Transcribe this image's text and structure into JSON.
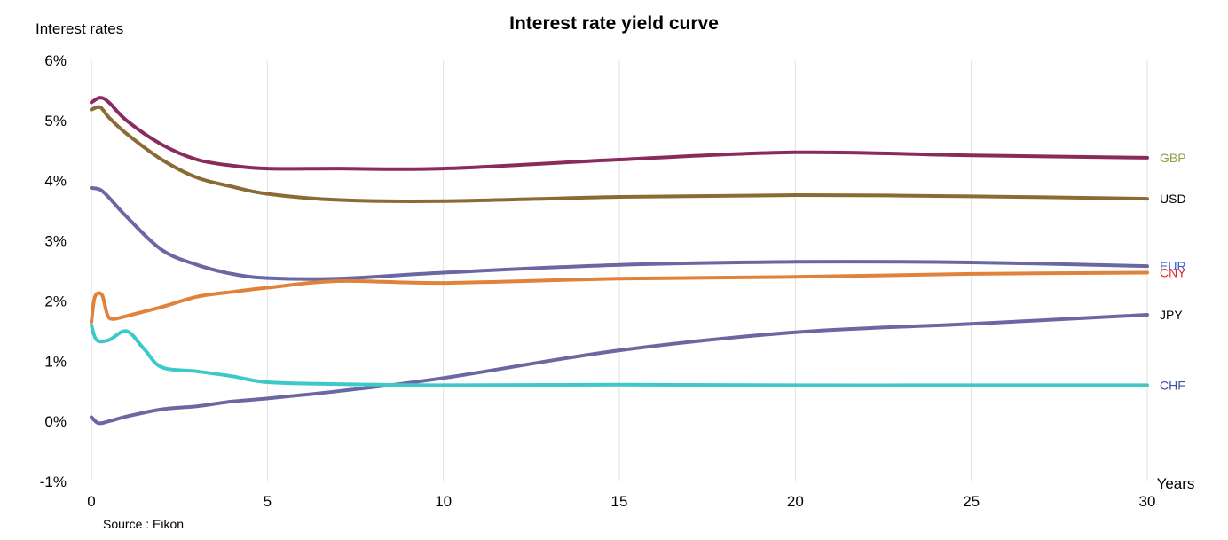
{
  "chart_data": {
    "type": "line",
    "title": "Interest rate yield curve",
    "ylabel": "Interest rates",
    "xlabel": "Years",
    "source": "Source : Eikon",
    "x_ticks": [
      "0",
      "5",
      "10",
      "15",
      "20",
      "25",
      "30"
    ],
    "y_ticks": [
      "-1%",
      "0%",
      "1%",
      "2%",
      "3%",
      "4%",
      "5%",
      "6%"
    ],
    "xlim": [
      0,
      30
    ],
    "ylim": [
      -1,
      6
    ],
    "grid": "vertical",
    "series": [
      {
        "name": "GBP",
        "color": "#8b2a5c",
        "label_color": "#8aa341",
        "points": [
          [
            0,
            5.3
          ],
          [
            0.25,
            5.38
          ],
          [
            0.5,
            5.3
          ],
          [
            1,
            5.0
          ],
          [
            2,
            4.6
          ],
          [
            3,
            4.35
          ],
          [
            4,
            4.25
          ],
          [
            5,
            4.2
          ],
          [
            7,
            4.2
          ],
          [
            10,
            4.2
          ],
          [
            15,
            4.35
          ],
          [
            20,
            4.47
          ],
          [
            25,
            4.42
          ],
          [
            30,
            4.38
          ]
        ]
      },
      {
        "name": "USD",
        "color": "#8a6b35",
        "label_color": "#000000",
        "points": [
          [
            0,
            5.18
          ],
          [
            0.25,
            5.22
          ],
          [
            0.5,
            5.05
          ],
          [
            1,
            4.78
          ],
          [
            2,
            4.35
          ],
          [
            3,
            4.05
          ],
          [
            4,
            3.9
          ],
          [
            5,
            3.78
          ],
          [
            7,
            3.68
          ],
          [
            10,
            3.66
          ],
          [
            15,
            3.73
          ],
          [
            20,
            3.76
          ],
          [
            25,
            3.74
          ],
          [
            30,
            3.7
          ]
        ]
      },
      {
        "name": "EUR",
        "color": "#6b67a3",
        "label_color": "#2e5fd6",
        "points": [
          [
            0,
            3.88
          ],
          [
            0.25,
            3.85
          ],
          [
            0.5,
            3.72
          ],
          [
            1,
            3.4
          ],
          [
            2,
            2.85
          ],
          [
            3,
            2.6
          ],
          [
            4,
            2.45
          ],
          [
            5,
            2.38
          ],
          [
            7,
            2.37
          ],
          [
            10,
            2.47
          ],
          [
            15,
            2.6
          ],
          [
            20,
            2.65
          ],
          [
            25,
            2.64
          ],
          [
            30,
            2.58
          ]
        ]
      },
      {
        "name": "CNY",
        "color": "#e0823a",
        "label_color": "#e0282e",
        "points": [
          [
            0,
            1.65
          ],
          [
            0.1,
            2.07
          ],
          [
            0.3,
            2.1
          ],
          [
            0.45,
            1.78
          ],
          [
            0.6,
            1.7
          ],
          [
            1,
            1.75
          ],
          [
            2,
            1.9
          ],
          [
            3,
            2.07
          ],
          [
            4,
            2.15
          ],
          [
            5,
            2.22
          ],
          [
            7,
            2.33
          ],
          [
            10,
            2.3
          ],
          [
            15,
            2.37
          ],
          [
            20,
            2.4
          ],
          [
            25,
            2.45
          ],
          [
            30,
            2.47
          ]
        ]
      },
      {
        "name": "JPY",
        "color": "#6b67a3",
        "label_color": "#000000",
        "points": [
          [
            0,
            0.07
          ],
          [
            0.2,
            -0.03
          ],
          [
            0.5,
            0.0
          ],
          [
            1,
            0.08
          ],
          [
            2,
            0.2
          ],
          [
            3,
            0.25
          ],
          [
            4,
            0.33
          ],
          [
            5,
            0.38
          ],
          [
            7,
            0.5
          ],
          [
            10,
            0.72
          ],
          [
            15,
            1.18
          ],
          [
            20,
            1.48
          ],
          [
            25,
            1.62
          ],
          [
            30,
            1.77
          ]
        ]
      },
      {
        "name": "CHF",
        "color": "#3ec8c8",
        "label_color": "#3a4f9e",
        "points": [
          [
            0,
            1.6
          ],
          [
            0.15,
            1.35
          ],
          [
            0.5,
            1.35
          ],
          [
            1,
            1.5
          ],
          [
            1.5,
            1.2
          ],
          [
            2,
            0.9
          ],
          [
            3,
            0.83
          ],
          [
            4,
            0.75
          ],
          [
            5,
            0.65
          ],
          [
            7,
            0.62
          ],
          [
            10,
            0.6
          ],
          [
            15,
            0.61
          ],
          [
            20,
            0.6
          ],
          [
            25,
            0.6
          ],
          [
            30,
            0.6
          ]
        ]
      }
    ]
  }
}
